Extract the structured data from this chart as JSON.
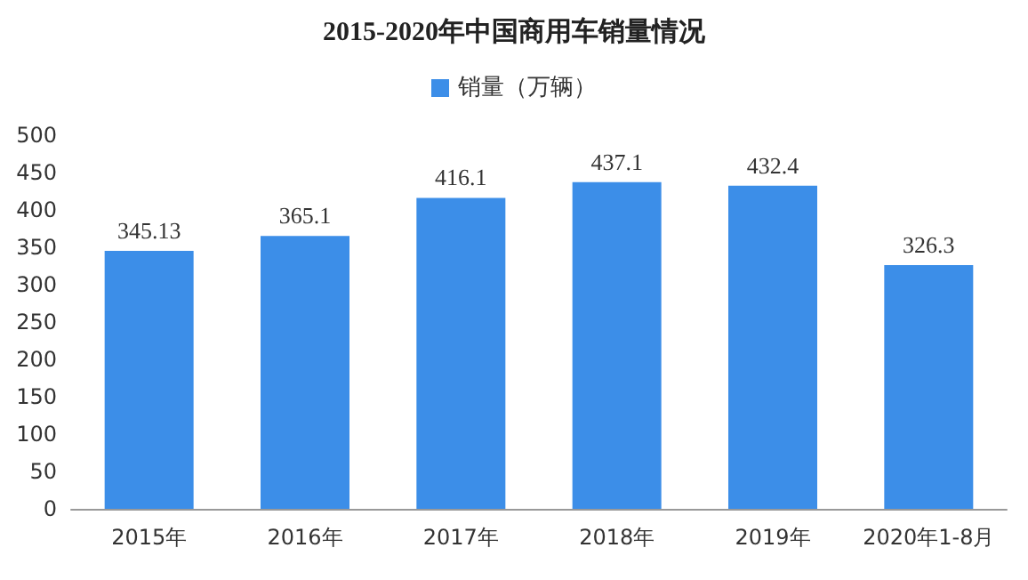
{
  "chart_data": {
    "type": "bar",
    "title": "2015-2020年中国商用车销量情况",
    "categories": [
      "2015年",
      "2016年",
      "2017年",
      "2018年",
      "2019年",
      "2020年1-8月"
    ],
    "series": [
      {
        "name": "销量（万辆）",
        "color": "#3c8ee8",
        "values": [
          345.13,
          365.1,
          416.1,
          437.1,
          432.4,
          326.3
        ]
      }
    ],
    "ylim": [
      0,
      500
    ],
    "yticks": [
      0,
      50,
      100,
      150,
      200,
      250,
      300,
      350,
      400,
      450,
      500
    ],
    "data_labels": true,
    "legend": "top",
    "grid": false
  }
}
